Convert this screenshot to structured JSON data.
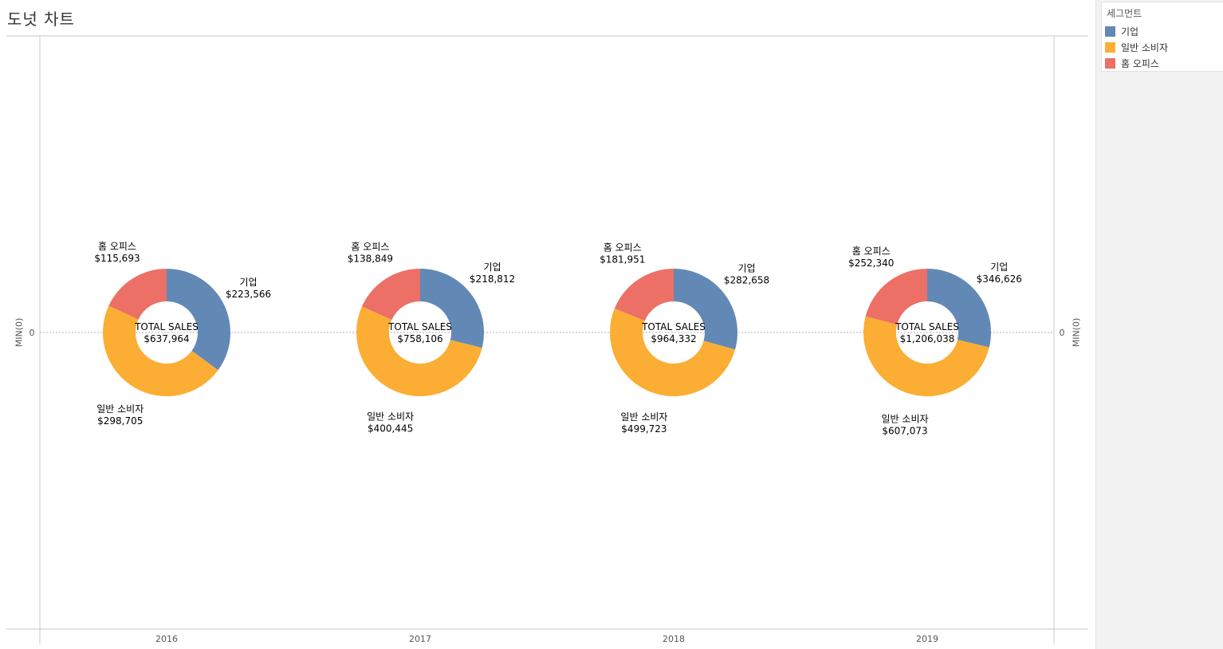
{
  "title": "도넛 차트",
  "legend": {
    "title": "세그먼트",
    "items": [
      {
        "label": "기업",
        "color": "#6289b6"
      },
      {
        "label": "일반 소비자",
        "color": "#fbae33"
      },
      {
        "label": "홈 오피스",
        "color": "#ec7066"
      }
    ]
  },
  "chart_data": {
    "type": "pie",
    "variant": "donut",
    "axis": {
      "left_label": "MIN(0)",
      "right_label": "MIN(0)",
      "tick": "0"
    },
    "center_label": "TOTAL SALES",
    "categories": [
      "2016",
      "2017",
      "2018",
      "2019"
    ],
    "segments": [
      "기업",
      "일반 소비자",
      "홈 오피스"
    ],
    "series": [
      {
        "name": "기업",
        "values": [
          223566,
          218812,
          282658,
          346626
        ],
        "labels": [
          "$223,566",
          "$218,812",
          "$282,658",
          "$346,626"
        ]
      },
      {
        "name": "일반 소비자",
        "values": [
          298705,
          400445,
          499723,
          607073
        ],
        "labels": [
          "$298,705",
          "$400,445",
          "$499,723",
          "$607,073"
        ]
      },
      {
        "name": "홈 오피스",
        "values": [
          115693,
          138849,
          181951,
          252340
        ],
        "labels": [
          "$115,693",
          "$138,849",
          "$181,951",
          "$252,340"
        ]
      }
    ],
    "totals": [
      "$637,964",
      "$758,106",
      "$964,332",
      "$1,206,038"
    ]
  }
}
